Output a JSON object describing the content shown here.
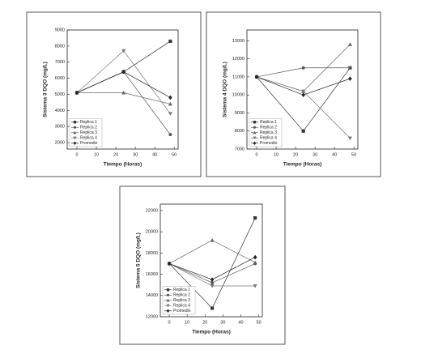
{
  "chart_data": [
    {
      "type": "line",
      "x_label": "Tiempo (Horas)",
      "y_label": "Sistema 3 DQO (mg/L)",
      "x": [
        0,
        24,
        48
      ],
      "xlim": [
        -5,
        52
      ],
      "xticks": [
        0,
        10,
        20,
        30,
        40,
        50
      ],
      "ylim": [
        1600,
        9000
      ],
      "yticks": [
        2000,
        3000,
        4000,
        5000,
        6000,
        7000,
        8000,
        9000
      ],
      "legend": "lower left",
      "series": [
        {
          "name": "Replica 1",
          "color": "#333333",
          "marker": "square",
          "values": [
            5100,
            6400,
            8300
          ]
        },
        {
          "name": "Replica 2",
          "color": "#555555",
          "marker": "circle",
          "values": [
            5100,
            6400,
            2500
          ]
        },
        {
          "name": "Replica 3",
          "color": "#666666",
          "marker": "triangle-up",
          "values": [
            5100,
            5100,
            4400
          ]
        },
        {
          "name": "Replica 4",
          "color": "#777777",
          "marker": "triangle-down",
          "values": [
            5100,
            7700,
            3800
          ]
        },
        {
          "name": "Promedio",
          "color": "#222222",
          "marker": "diamond",
          "values": [
            5100,
            6400,
            4800
          ]
        }
      ]
    },
    {
      "type": "line",
      "x_label": "Tiempo (Horas)",
      "y_label": "Sistema 4 DQO (mg/L)",
      "x": [
        0,
        24,
        48
      ],
      "xlim": [
        -5,
        52
      ],
      "xticks": [
        0,
        10,
        20,
        30,
        40,
        50
      ],
      "ylim": [
        7000,
        13600
      ],
      "yticks": [
        7000,
        8000,
        9000,
        10000,
        11000,
        12000,
        13000
      ],
      "legend": "lower left",
      "series": [
        {
          "name": "Replica 1",
          "color": "#333333",
          "marker": "square",
          "values": [
            11000,
            8000,
            11500
          ]
        },
        {
          "name": "Replica 2",
          "color": "#555555",
          "marker": "circle",
          "values": [
            11000,
            11500,
            11500
          ]
        },
        {
          "name": "Replica 3",
          "color": "#666666",
          "marker": "triangle-up",
          "values": [
            11000,
            10200,
            12800
          ]
        },
        {
          "name": "Replica 4",
          "color": "#777777",
          "marker": "triangle-down",
          "values": [
            11000,
            10200,
            7600
          ]
        },
        {
          "name": "Promedio",
          "color": "#222222",
          "marker": "diamond",
          "values": [
            11000,
            10000,
            10900
          ]
        }
      ]
    },
    {
      "type": "line",
      "x_label": "Tiempo (Horas)",
      "y_label": "Sistema 5 DQO (mg/L)",
      "x": [
        0,
        24,
        48
      ],
      "xlim": [
        -5,
        52
      ],
      "xticks": [
        0,
        10,
        20,
        30,
        40,
        50
      ],
      "ylim": [
        12000,
        22600
      ],
      "yticks": [
        12000,
        14000,
        16000,
        18000,
        20000,
        22000
      ],
      "legend": "lower left",
      "series": [
        {
          "name": "Replica 1",
          "color": "#333333",
          "marker": "square",
          "values": [
            17000,
            12800,
            21300
          ]
        },
        {
          "name": "Replica 2",
          "color": "#555555",
          "marker": "circle",
          "values": [
            17000,
            15200,
            17000
          ]
        },
        {
          "name": "Replica 3",
          "color": "#666666",
          "marker": "triangle-up",
          "values": [
            17000,
            19200,
            17100
          ]
        },
        {
          "name": "Replica 4",
          "color": "#777777",
          "marker": "triangle-down",
          "values": [
            17000,
            14900,
            14900
          ]
        },
        {
          "name": "Promedio",
          "color": "#222222",
          "marker": "diamond",
          "values": [
            17000,
            15500,
            17600
          ]
        }
      ]
    }
  ]
}
